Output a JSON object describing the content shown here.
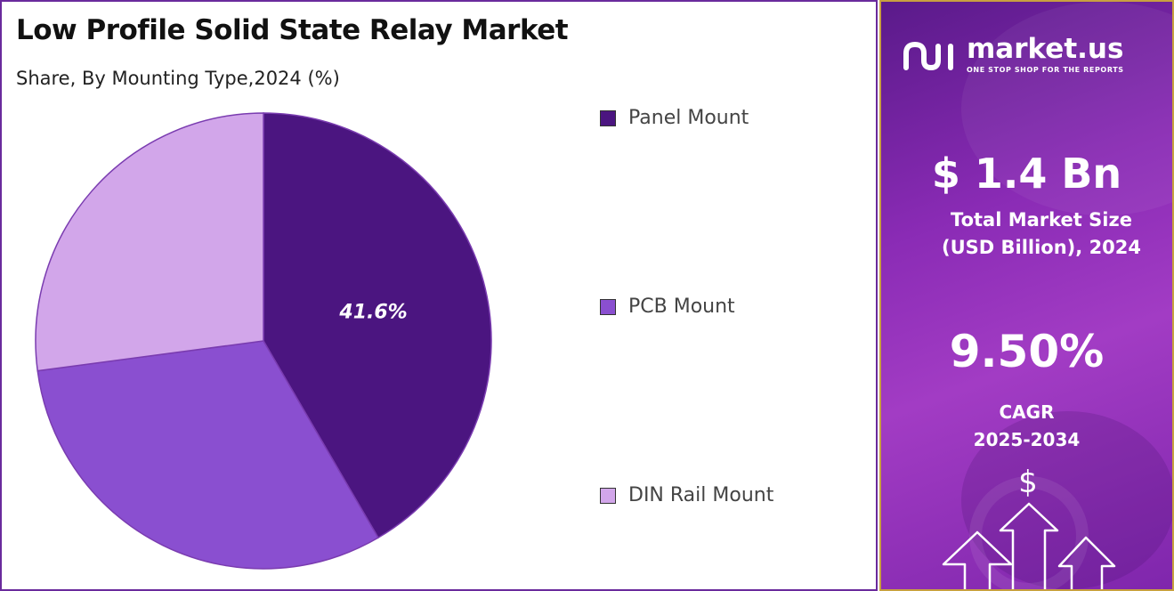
{
  "header": {
    "title": "Low Profile Solid State Relay Market",
    "subtitle": "Share, By Mounting Type,2024 (%)"
  },
  "chart_data": {
    "type": "pie",
    "categories": [
      "Panel Mount",
      "PCB Mount",
      "DIN Rail Mount"
    ],
    "values": [
      41.6,
      31.3,
      27.1
    ],
    "colors": [
      "#4b1580",
      "#8a4fd0",
      "#d2a6ea"
    ],
    "data_labels": [
      "41.6%",
      "",
      ""
    ],
    "start_angle": "12 o'clock",
    "direction": "clockwise",
    "legend_position": "right"
  },
  "sidebar": {
    "brand_name": "market.us",
    "brand_tagline": "ONE STOP SHOP FOR THE REPORTS",
    "market_size_value": "$ 1.4 Bn",
    "market_size_label_line1": "Total Market Size",
    "market_size_label_line2": "(USD Billion), 2024",
    "cagr_value": "9.50%",
    "cagr_label_line1": "CAGR",
    "cagr_label_line2": "2025-2034",
    "currency_symbol": "$"
  }
}
